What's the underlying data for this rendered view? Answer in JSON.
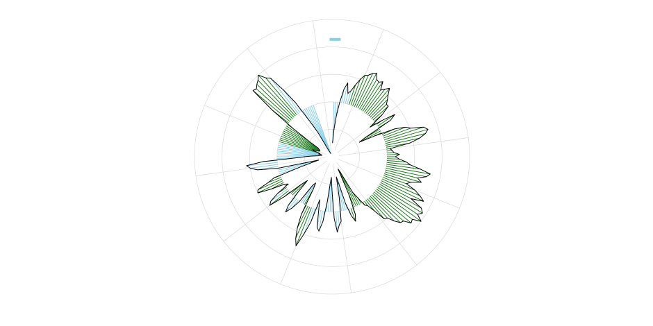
{
  "chart_data": {
    "type": "polar-line",
    "title": "",
    "grid": true,
    "legend": "none",
    "rmax": 200,
    "rings": [
      40,
      80,
      120,
      160,
      200
    ],
    "spokes": 12,
    "direction": "clockwise",
    "start_angle": "north",
    "baseline": 80,
    "series": [
      {
        "color": "#000000",
        "theta": [
          2,
          4,
          6,
          8,
          10,
          12,
          14,
          16,
          18,
          20,
          22,
          24,
          26,
          28,
          30,
          32,
          34,
          36,
          38,
          40,
          42,
          44,
          46,
          48,
          50,
          52,
          54,
          56,
          58,
          60,
          62,
          64,
          66,
          68,
          70,
          72,
          74,
          76,
          78,
          80,
          82,
          84,
          86,
          88,
          90,
          92,
          94,
          96,
          98,
          100,
          102,
          104,
          106,
          108,
          110,
          112,
          114,
          116,
          118,
          120,
          122,
          124,
          126,
          128,
          130,
          132,
          134,
          136,
          138,
          140,
          142,
          144,
          146,
          148,
          150,
          152,
          154,
          156,
          158,
          160,
          162,
          164,
          166,
          168,
          170,
          172,
          174,
          176,
          178,
          180,
          182,
          184,
          186,
          188,
          190,
          192,
          194,
          196,
          198,
          200,
          202,
          204,
          206,
          208,
          210,
          212,
          214,
          216,
          218,
          220,
          222,
          224,
          226,
          228,
          230,
          232,
          234,
          236,
          238,
          240,
          242,
          244,
          246,
          248,
          250,
          252,
          254,
          256,
          258,
          260,
          262,
          264,
          266,
          268,
          270,
          272,
          274,
          276,
          278,
          280,
          282,
          284,
          286,
          288,
          290,
          292,
          294,
          296,
          298,
          300,
          302,
          304,
          306,
          308,
          310,
          312,
          314,
          316,
          318,
          320,
          322,
          324,
          326,
          328,
          330,
          332,
          334,
          336,
          338,
          340,
          342,
          344,
          346,
          348,
          350,
          352,
          354,
          356,
          358,
          360
        ],
        "r": [
          20,
          40,
          60,
          80,
          100,
          110,
          95,
          100,
          110,
          120,
          128,
          130,
          135,
          138,
          130,
          128,
          132,
          120,
          125,
          130,
          122,
          116,
          110,
          110,
          95,
          70,
          90,
          110,
          100,
          55,
          45,
          70,
          100,
          115,
          122,
          140,
          145,
          140,
          130,
          115,
          85,
          88,
          90,
          98,
          92,
          98,
          108,
          115,
          130,
          145,
          140,
          128,
          135,
          120,
          115,
          130,
          140,
          148,
          130,
          150,
          155,
          150,
          160,
          148,
          150,
          140,
          138,
          130,
          120,
          118,
          100,
          88,
          85,
          70,
          60,
          25,
          20,
          60,
          90,
          100,
          90,
          70,
          40,
          30,
          60,
          95,
          100,
          110,
          90,
          50,
          30,
          40,
          65,
          95,
          110,
          105,
          80,
          65,
          100,
          120,
          140,
          130,
          115,
          95,
          55,
          45,
          50,
          80,
          95,
          105,
          95,
          70,
          50,
          60,
          90,
          115,
          110,
          95,
          75,
          80,
          100,
          120,
          118,
          100,
          90,
          50,
          30,
          20,
          80,
          110,
          120,
          125,
          100,
          55,
          40,
          30,
          20,
          18,
          15,
          15,
          20,
          18,
          20,
          28,
          30,
          22,
          20,
          20,
          20,
          22,
          24,
          40,
          70,
          110,
          150,
          148,
          152,
          155,
          160,
          150,
          145,
          120,
          95,
          60,
          40,
          10,
          8,
          6,
          5,
          5
        ]
      }
    ],
    "fill_lines": [
      {
        "color": "#1a7a1a",
        "theta": [
          18,
          20,
          22,
          24,
          26,
          28,
          30,
          32,
          34,
          36,
          38,
          40,
          42,
          44,
          46,
          48,
          50,
          52,
          54,
          56,
          58,
          60,
          62,
          64,
          66,
          68,
          70,
          72,
          74,
          76,
          78,
          80,
          82,
          84,
          86,
          88,
          90,
          92,
          94,
          96,
          98,
          100,
          102,
          104,
          106,
          108,
          110,
          112,
          114,
          116,
          118,
          120,
          122,
          124,
          126,
          128,
          130,
          132,
          134,
          136,
          138,
          140,
          142,
          144,
          146,
          148,
          150,
          152,
          154,
          156,
          158,
          160,
          202,
          204,
          206,
          208,
          210,
          212,
          226,
          228,
          230,
          232,
          236,
          238,
          240,
          242,
          244,
          246,
          248,
          250,
          286,
          288,
          290,
          292,
          294,
          296,
          298,
          300,
          302,
          304,
          306,
          308,
          310,
          312,
          314,
          316,
          318,
          320
        ]
      },
      {
        "color": "#87ceeb",
        "theta": [
          162,
          164,
          166,
          168,
          170,
          172,
          174,
          176,
          178,
          180,
          182,
          184,
          186,
          188,
          190,
          192,
          194,
          196,
          198,
          200,
          212,
          214,
          216,
          218,
          220,
          222,
          224,
          234,
          252,
          254,
          256,
          258,
          260,
          262,
          264,
          266,
          268,
          270,
          272,
          274,
          276,
          278,
          280,
          282,
          284,
          322,
          324,
          326,
          328,
          330,
          332,
          334,
          336,
          338,
          340,
          342,
          344,
          346,
          348,
          350,
          352,
          354,
          356,
          358,
          360,
          2,
          4,
          6,
          8,
          10,
          12,
          14,
          16
        ]
      }
    ],
    "colors": {
      "grid": "#dddddd",
      "line": "#000000",
      "above": "#1a7a1a",
      "below": "#87ceeb",
      "marker": "#87ceeb"
    }
  }
}
